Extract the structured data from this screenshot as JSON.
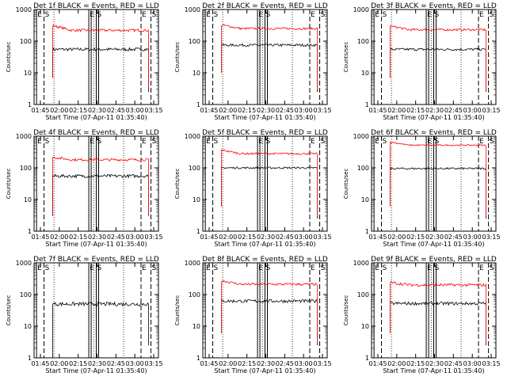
{
  "chart_data": [
    {
      "type": "line",
      "title": "Det 1f BLACK = Events, RED = LLD",
      "xlabel": "Start Time (07-Apr-11 01:35:40)",
      "ylabel": "Counts/sec",
      "y_scale": "log",
      "ylim": [
        1,
        1000
      ],
      "y_ticks": [
        1,
        10,
        100,
        1000
      ],
      "x_ticks": [
        "01:45",
        "02:00",
        "02:15",
        "02:30",
        "02:45",
        "03:00",
        "03:15"
      ],
      "series": [
        {
          "color": "#000000",
          "level": 55,
          "start": 7.0,
          "end": 2.5,
          "noise": 0.05
        },
        {
          "color": "#ff0000",
          "level": 220,
          "start": 7.0,
          "end": 3.2,
          "noise": 0.04,
          "hump": 1.4
        }
      ],
      "markers": [
        {
          "label": "E",
          "t": 0.0,
          "style": "solid"
        },
        {
          "label": "S",
          "t": 0.06,
          "style": "dashed"
        },
        {
          "label": "E",
          "t": 0.55,
          "style": "solid"
        },
        {
          "label": "S",
          "t": 0.64,
          "style": "solid"
        },
        {
          "label": "E",
          "t": 0.84,
          "style": "dashed"
        },
        {
          "label": "S",
          "t": 0.91,
          "style": "dashed"
        }
      ]
    },
    {
      "type": "line",
      "title": "Det 2f BLACK = Events, RED = LLD",
      "xlabel": "Start Time (07-Apr-11 01:35:40)",
      "ylabel": "Counts/sec",
      "y_scale": "log",
      "ylim": [
        1,
        1000
      ],
      "y_ticks": [
        1,
        10,
        100,
        1000
      ],
      "x_ticks": [
        "01:45",
        "02:00",
        "02:15",
        "02:30",
        "02:45",
        "03:00",
        "03:15"
      ],
      "series": [
        {
          "color": "#000000",
          "level": 75,
          "start": 10.0,
          "end": 2.5,
          "noise": 0.04
        },
        {
          "color": "#ff0000",
          "level": 250,
          "start": 10.0,
          "end": 3.0,
          "noise": 0.035,
          "hump": 1.3
        }
      ],
      "markers": [
        {
          "label": "E",
          "t": 0.0,
          "style": "solid"
        },
        {
          "label": "S",
          "t": 0.06,
          "style": "dashed"
        },
        {
          "label": "E",
          "t": 0.55,
          "style": "solid"
        },
        {
          "label": "S",
          "t": 0.64,
          "style": "solid"
        },
        {
          "label": "E",
          "t": 0.84,
          "style": "dashed"
        },
        {
          "label": "S",
          "t": 0.91,
          "style": "dashed"
        }
      ]
    },
    {
      "type": "line",
      "title": "Det 3f BLACK = Events, RED = LLD",
      "xlabel": "Start Time (07-Apr-11 01:35:40)",
      "ylabel": "Counts/sec",
      "y_scale": "log",
      "ylim": [
        1,
        1000
      ],
      "y_ticks": [
        1,
        10,
        100,
        1000
      ],
      "x_ticks": [
        "01:45",
        "02:00",
        "02:15",
        "02:30",
        "02:45",
        "03:00",
        "03:15"
      ],
      "series": [
        {
          "color": "#000000",
          "level": 55,
          "start": 7.0,
          "end": 2.5,
          "noise": 0.04
        },
        {
          "color": "#ff0000",
          "level": 230,
          "start": 7.0,
          "end": 3.0,
          "noise": 0.035,
          "hump": 1.3
        }
      ],
      "markers": [
        {
          "label": "E",
          "t": 0.0,
          "style": "solid"
        },
        {
          "label": "S",
          "t": 0.06,
          "style": "dashed"
        },
        {
          "label": "E",
          "t": 0.55,
          "style": "solid"
        },
        {
          "label": "S",
          "t": 0.64,
          "style": "solid"
        },
        {
          "label": "E",
          "t": 0.84,
          "style": "dashed"
        },
        {
          "label": "S",
          "t": 0.91,
          "style": "dashed"
        }
      ]
    },
    {
      "type": "line",
      "title": "Det 4f BLACK = Events, RED = LLD",
      "xlabel": "Start Time (07-Apr-11 01:35:40)",
      "ylabel": "Counts/sec",
      "y_scale": "log",
      "ylim": [
        1,
        1000
      ],
      "y_ticks": [
        1,
        10,
        100,
        1000
      ],
      "x_ticks": [
        "01:45",
        "02:00",
        "02:15",
        "02:30",
        "02:45",
        "03:00",
        "03:15"
      ],
      "series": [
        {
          "color": "#000000",
          "level": 55,
          "start": 3.0,
          "end": 3.0,
          "noise": 0.05
        },
        {
          "color": "#ff0000",
          "level": 180,
          "start": 3.0,
          "end": 3.0,
          "noise": 0.04,
          "hump": 1.2
        }
      ],
      "markers": [
        {
          "label": "E",
          "t": 0.0,
          "style": "solid"
        },
        {
          "label": "S",
          "t": 0.06,
          "style": "dashed"
        },
        {
          "label": "E",
          "t": 0.55,
          "style": "solid"
        },
        {
          "label": "S",
          "t": 0.64,
          "style": "solid"
        },
        {
          "label": "E",
          "t": 0.84,
          "style": "dashed"
        },
        {
          "label": "S",
          "t": 0.91,
          "style": "dashed"
        }
      ]
    },
    {
      "type": "line",
      "title": "Det 5f BLACK = Events, RED = LLD",
      "xlabel": "Start Time (07-Apr-11 01:35:40)",
      "ylabel": "Counts/sec",
      "y_scale": "log",
      "ylim": [
        1,
        1000
      ],
      "y_ticks": [
        1,
        10,
        100,
        1000
      ],
      "x_ticks": [
        "01:45",
        "02:00",
        "02:15",
        "02:30",
        "02:45",
        "03:00",
        "03:15"
      ],
      "series": [
        {
          "color": "#000000",
          "level": 100,
          "start": 6.0,
          "end": 2.5,
          "noise": 0.03
        },
        {
          "color": "#ff0000",
          "level": 280,
          "start": 6.0,
          "end": 3.0,
          "noise": 0.03,
          "hump": 1.3
        }
      ],
      "markers": [
        {
          "label": "E",
          "t": 0.0,
          "style": "solid"
        },
        {
          "label": "S",
          "t": 0.06,
          "style": "dashed"
        },
        {
          "label": "E",
          "t": 0.55,
          "style": "solid"
        },
        {
          "label": "S",
          "t": 0.64,
          "style": "solid"
        },
        {
          "label": "E",
          "t": 0.84,
          "style": "dashed"
        },
        {
          "label": "S",
          "t": 0.91,
          "style": "dashed"
        }
      ]
    },
    {
      "type": "line",
      "title": "Det 6f BLACK = Events, RED = LLD",
      "xlabel": "Start Time (07-Apr-11 01:35:40)",
      "ylabel": "Counts/sec",
      "y_scale": "log",
      "ylim": [
        1,
        1000
      ],
      "y_ticks": [
        1,
        10,
        100,
        1000
      ],
      "x_ticks": [
        "01:45",
        "02:00",
        "02:15",
        "02:30",
        "02:45",
        "03:00",
        "03:15"
      ],
      "series": [
        {
          "color": "#000000",
          "level": 95,
          "start": 6.0,
          "end": 2.5,
          "noise": 0.03
        },
        {
          "color": "#ff0000",
          "level": 520,
          "start": 6.0,
          "end": 3.0,
          "noise": 0.02,
          "hump": 1.25
        }
      ],
      "markers": [
        {
          "label": "E",
          "t": 0.0,
          "style": "solid"
        },
        {
          "label": "S",
          "t": 0.06,
          "style": "dashed"
        },
        {
          "label": "E",
          "t": 0.55,
          "style": "solid"
        },
        {
          "label": "S",
          "t": 0.64,
          "style": "solid"
        },
        {
          "label": "E",
          "t": 0.84,
          "style": "dashed"
        },
        {
          "label": "S",
          "t": 0.91,
          "style": "dashed"
        }
      ]
    },
    {
      "type": "line",
      "title": "Det 7f BLACK = Events, RED = LLD",
      "xlabel": "Start Time (07-Apr-11 01:35:40)",
      "ylabel": "Counts/sec",
      "y_scale": "log",
      "ylim": [
        1,
        1000
      ],
      "y_ticks": [
        1,
        10,
        100,
        1000
      ],
      "x_ticks": [
        "01:45",
        "02:00",
        "02:15",
        "02:30",
        "02:45",
        "03:00",
        "03:15"
      ],
      "series": [
        {
          "color": "#000000",
          "level": 50,
          "start": 1.0,
          "end": 2.5,
          "noise": 0.06
        }
      ],
      "markers": [
        {
          "label": "E",
          "t": 0.0,
          "style": "solid"
        },
        {
          "label": "S",
          "t": 0.06,
          "style": "dashed"
        },
        {
          "label": "E",
          "t": 0.55,
          "style": "solid"
        },
        {
          "label": "S",
          "t": 0.64,
          "style": "solid"
        },
        {
          "label": "E",
          "t": 0.84,
          "style": "dashed"
        },
        {
          "label": "S",
          "t": 0.91,
          "style": "dashed"
        }
      ]
    },
    {
      "type": "line",
      "title": "Det 8f BLACK = Events, RED = LLD",
      "xlabel": "Start Time (07-Apr-11 01:35:40)",
      "ylabel": "Counts/sec",
      "y_scale": "log",
      "ylim": [
        1,
        1000
      ],
      "y_ticks": [
        1,
        10,
        100,
        1000
      ],
      "x_ticks": [
        "01:45",
        "02:00",
        "02:15",
        "02:30",
        "02:45",
        "03:00",
        "03:15"
      ],
      "series": [
        {
          "color": "#000000",
          "level": 62,
          "start": 6.0,
          "end": 2.5,
          "noise": 0.05
        },
        {
          "color": "#ff0000",
          "level": 210,
          "start": 6.0,
          "end": 3.0,
          "noise": 0.04,
          "hump": 1.3
        }
      ],
      "markers": [
        {
          "label": "E",
          "t": 0.0,
          "style": "solid"
        },
        {
          "label": "S",
          "t": 0.06,
          "style": "dashed"
        },
        {
          "label": "E",
          "t": 0.55,
          "style": "solid"
        },
        {
          "label": "S",
          "t": 0.64,
          "style": "solid"
        },
        {
          "label": "E",
          "t": 0.84,
          "style": "dashed"
        },
        {
          "label": "S",
          "t": 0.91,
          "style": "dashed"
        }
      ]
    },
    {
      "type": "line",
      "title": "Det 9f BLACK = Events, RED = LLD",
      "xlabel": "Start Time (07-Apr-11 01:35:40)",
      "ylabel": "Counts/sec",
      "y_scale": "log",
      "ylim": [
        1,
        1000
      ],
      "y_ticks": [
        1,
        10,
        100,
        1000
      ],
      "x_ticks": [
        "01:45",
        "02:00",
        "02:15",
        "02:30",
        "02:45",
        "03:00",
        "03:15"
      ],
      "series": [
        {
          "color": "#000000",
          "level": 52,
          "start": 6.0,
          "end": 2.5,
          "noise": 0.05
        },
        {
          "color": "#ff0000",
          "level": 200,
          "start": 6.0,
          "end": 3.0,
          "noise": 0.045,
          "hump": 1.2
        }
      ],
      "markers": [
        {
          "label": "E",
          "t": 0.0,
          "style": "solid"
        },
        {
          "label": "S",
          "t": 0.06,
          "style": "dashed"
        },
        {
          "label": "E",
          "t": 0.55,
          "style": "solid"
        },
        {
          "label": "S",
          "t": 0.64,
          "style": "solid"
        },
        {
          "label": "E",
          "t": 0.84,
          "style": "dashed"
        },
        {
          "label": "S",
          "t": 0.91,
          "style": "dashed"
        }
      ]
    }
  ]
}
